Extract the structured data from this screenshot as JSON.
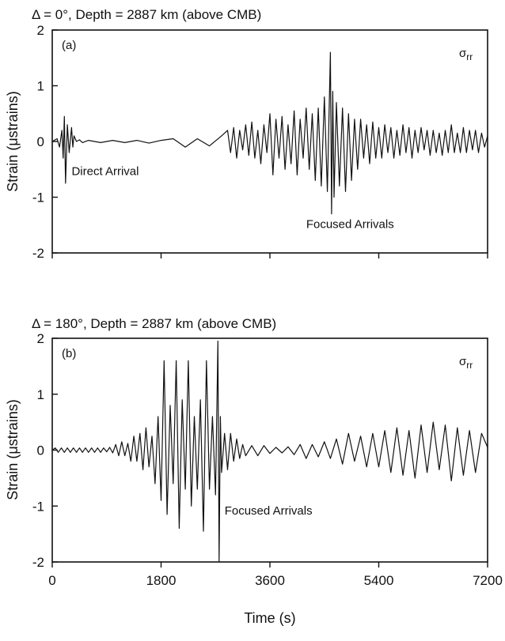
{
  "chart_data": [
    {
      "type": "line",
      "title": "Δ = 0°, Depth = 2887 km (above CMB)",
      "panel_label": "(a)",
      "component_label": "σrr",
      "ylabel": "Strain (μstrains)",
      "xlabel": "",
      "xlim": [
        0,
        7200
      ],
      "ylim": [
        -2,
        2
      ],
      "yticks": [
        "2",
        "1",
        "0",
        "-1",
        "-2"
      ],
      "xtick_values": [
        0,
        1800,
        3600,
        5400,
        7200
      ],
      "show_xtick_labels": false,
      "grid": false,
      "annotations": [
        {
          "text": "Direct Arrival",
          "x": 320,
          "y": -0.6
        },
        {
          "text": "Focused Arrivals",
          "x": 4200,
          "y": -1.55
        }
      ],
      "series": [
        {
          "x": [
            0,
            80,
            120,
            160,
            180,
            200,
            220,
            250,
            280,
            320,
            340,
            360,
            400,
            450,
            500,
            600,
            800,
            1000,
            1200,
            1400,
            1600,
            1800,
            2000,
            2200,
            2400,
            2600,
            2800,
            2900,
            2950,
            3000,
            3050,
            3100,
            3150,
            3200,
            3250,
            3300,
            3350,
            3400,
            3450,
            3500,
            3550,
            3600,
            3650,
            3700,
            3750,
            3800,
            3850,
            3900,
            3950,
            4000,
            4050,
            4100,
            4150,
            4200,
            4250,
            4300,
            4350,
            4400,
            4450,
            4500,
            4550,
            4600,
            4620,
            4640,
            4660,
            4700,
            4750,
            4800,
            4850,
            4900,
            4950,
            5000,
            5050,
            5100,
            5150,
            5200,
            5250,
            5300,
            5350,
            5400,
            5450,
            5500,
            5550,
            5600,
            5650,
            5700,
            5750,
            5800,
            5850,
            5900,
            5950,
            6000,
            6050,
            6100,
            6150,
            6200,
            6250,
            6300,
            6350,
            6400,
            6450,
            6500,
            6550,
            6600,
            6650,
            6700,
            6750,
            6800,
            6850,
            6900,
            6950,
            7000,
            7050,
            7100,
            7150,
            7200
          ],
          "values": [
            0,
            0.05,
            -0.1,
            0.2,
            -0.3,
            0.45,
            -0.75,
            0.3,
            -0.2,
            0.25,
            -0.1,
            0.1,
            0,
            0.03,
            -0.02,
            0.02,
            -0.02,
            0.02,
            -0.02,
            0.02,
            -0.03,
            0.02,
            0.05,
            -0.1,
            0.05,
            -0.08,
            0.1,
            0.2,
            -0.2,
            0.25,
            -0.3,
            0.2,
            -0.15,
            0.3,
            -0.25,
            0.35,
            -0.3,
            0.2,
            -0.4,
            0.3,
            -0.2,
            0.5,
            -0.6,
            0.4,
            -0.3,
            0.45,
            -0.5,
            0.3,
            -0.4,
            0.55,
            -0.6,
            0.4,
            -0.3,
            0.6,
            -0.5,
            0.5,
            -0.7,
            0.6,
            -0.8,
            0.8,
            -0.9,
            1.6,
            -1.3,
            0.9,
            -1.0,
            0.7,
            -0.8,
            0.6,
            -0.9,
            0.5,
            -0.7,
            0.4,
            -0.5,
            0.4,
            -0.3,
            0.3,
            -0.4,
            0.35,
            -0.3,
            0.25,
            -0.3,
            0.3,
            -0.2,
            0.25,
            -0.3,
            0.2,
            -0.25,
            0.3,
            -0.2,
            0.25,
            -0.3,
            0.2,
            -0.2,
            0.25,
            -0.15,
            0.2,
            -0.25,
            0.2,
            -0.2,
            0.15,
            -0.25,
            0.2,
            -0.2,
            0.3,
            -0.2,
            0.15,
            -0.2,
            0.25,
            -0.2,
            0.2,
            -0.15,
            0.2,
            -0.2,
            0.15,
            -0.1,
            0.1
          ]
        }
      ]
    },
    {
      "type": "line",
      "title": "Δ = 180°, Depth = 2887 km (above CMB)",
      "panel_label": "(b)",
      "component_label": "σrr",
      "ylabel": "Strain (μstrains)",
      "xlabel": "Time (s)",
      "xlim": [
        0,
        7200
      ],
      "ylim": [
        -2,
        2
      ],
      "yticks": [
        "2",
        "1",
        "0",
        "-1",
        "-2"
      ],
      "xticks": [
        "0",
        "1800",
        "3600",
        "5400",
        "7200"
      ],
      "xtick_values": [
        0,
        1800,
        3600,
        5400,
        7200
      ],
      "show_xtick_labels": true,
      "grid": false,
      "annotations": [
        {
          "text": "Focused Arrivals",
          "x": 2850,
          "y": -1.15
        }
      ],
      "series": [
        {
          "x": [
            0,
            50,
            100,
            150,
            200,
            250,
            300,
            350,
            400,
            450,
            500,
            550,
            600,
            650,
            700,
            750,
            800,
            850,
            900,
            950,
            1000,
            1050,
            1100,
            1150,
            1200,
            1250,
            1300,
            1350,
            1400,
            1450,
            1500,
            1550,
            1600,
            1650,
            1700,
            1750,
            1800,
            1850,
            1900,
            1950,
            2000,
            2050,
            2100,
            2150,
            2200,
            2250,
            2300,
            2350,
            2400,
            2450,
            2500,
            2550,
            2600,
            2650,
            2700,
            2740,
            2760,
            2780,
            2800,
            2850,
            2900,
            2950,
            3000,
            3050,
            3100,
            3150,
            3200,
            3300,
            3400,
            3500,
            3600,
            3700,
            3800,
            3900,
            4000,
            4100,
            4200,
            4300,
            4400,
            4500,
            4600,
            4700,
            4800,
            4900,
            5000,
            5100,
            5200,
            5300,
            5400,
            5500,
            5600,
            5700,
            5800,
            5900,
            6000,
            6100,
            6200,
            6300,
            6400,
            6500,
            6600,
            6700,
            6800,
            6900,
            7000,
            7100,
            7200
          ],
          "values": [
            0,
            0.04,
            -0.04,
            0.04,
            -0.04,
            0.04,
            -0.04,
            0.04,
            -0.04,
            0.04,
            -0.04,
            0.04,
            -0.04,
            0.04,
            -0.04,
            0.04,
            -0.04,
            0.04,
            -0.03,
            0.05,
            -0.05,
            0.1,
            -0.1,
            0.15,
            -0.1,
            0.12,
            -0.2,
            0.25,
            -0.2,
            0.3,
            -0.35,
            0.4,
            -0.3,
            0.25,
            -0.6,
            0.6,
            -0.9,
            1.6,
            -1.15,
            0.8,
            -0.6,
            1.6,
            -1.4,
            0.9,
            -0.7,
            1.6,
            -1.0,
            0.6,
            -0.7,
            0.9,
            -1.45,
            1.6,
            -0.7,
            0.6,
            -0.8,
            1.95,
            -2.0,
            0.6,
            -0.4,
            0.3,
            -0.35,
            0.3,
            -0.2,
            0.2,
            -0.15,
            0.1,
            -0.1,
            0.08,
            -0.1,
            0.08,
            -0.06,
            0.05,
            -0.05,
            0.06,
            -0.08,
            0.1,
            -0.15,
            0.1,
            -0.12,
            0.15,
            -0.15,
            0.2,
            -0.25,
            0.3,
            -0.2,
            0.25,
            -0.3,
            0.3,
            -0.3,
            0.35,
            -0.4,
            0.4,
            -0.45,
            0.35,
            -0.5,
            0.45,
            -0.4,
            0.5,
            -0.35,
            0.45,
            -0.55,
            0.4,
            -0.45,
            0.35,
            -0.4,
            0.3,
            0.05
          ]
        }
      ]
    }
  ]
}
